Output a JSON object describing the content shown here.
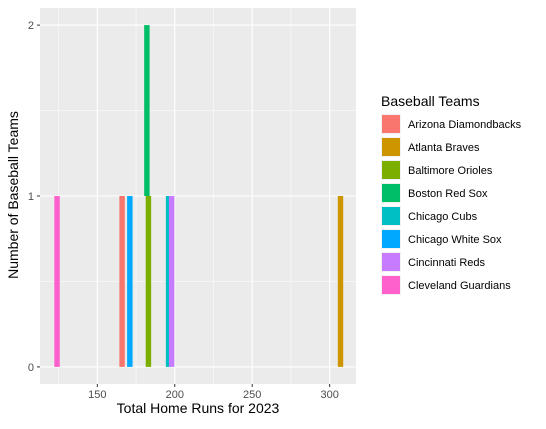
{
  "chart_data": {
    "type": "bar",
    "subtype": "stacked-histogram",
    "title": "",
    "xlabel": "Total Home Runs for 2023",
    "ylabel": "Number of Baseball Teams",
    "xlim": [
      113,
      317
    ],
    "ylim": [
      -0.1,
      2.1
    ],
    "x_ticks": [
      150,
      200,
      250,
      300
    ],
    "y_ticks": [
      0,
      1,
      2
    ],
    "bin_width": 3.5,
    "grid": true,
    "background": "#EBEBEB",
    "legend": {
      "title": "Baseball Teams",
      "placement": "right",
      "entries": [
        {
          "name": "Arizona Diamondbacks",
          "color": "#F8766D"
        },
        {
          "name": "Atlanta Braves",
          "color": "#CD9600"
        },
        {
          "name": "Baltimore Orioles",
          "color": "#7CAE00"
        },
        {
          "name": "Boston Red Sox",
          "color": "#00BE67"
        },
        {
          "name": "Chicago Cubs",
          "color": "#00BFC4"
        },
        {
          "name": "Chicago White Sox",
          "color": "#00A9FF"
        },
        {
          "name": "Cincinnati Reds",
          "color": "#C77CFF"
        },
        {
          "name": "Cleveland Guardians",
          "color": "#FF61CC"
        }
      ]
    },
    "series": [
      {
        "name": "Arizona Diamondbacks",
        "x": 166,
        "count": 1,
        "color": "#F8766D"
      },
      {
        "name": "Atlanta Braves",
        "x": 307,
        "count": 1,
        "color": "#CD9600"
      },
      {
        "name": "Baltimore Orioles",
        "x": 183,
        "count": 1,
        "color": "#7CAE00"
      },
      {
        "name": "Boston Red Sox",
        "x": 182,
        "count": 1,
        "color": "#00BE67"
      },
      {
        "name": "Chicago Cubs",
        "x": 196,
        "count": 1,
        "color": "#00BFC4"
      },
      {
        "name": "Chicago White Sox",
        "x": 171,
        "count": 1,
        "color": "#00A9FF"
      },
      {
        "name": "Cincinnati Reds",
        "x": 198,
        "count": 1,
        "color": "#C77CFF"
      },
      {
        "name": "Cleveland Guardians",
        "x": 124,
        "count": 1,
        "color": "#FF61CC"
      }
    ]
  }
}
